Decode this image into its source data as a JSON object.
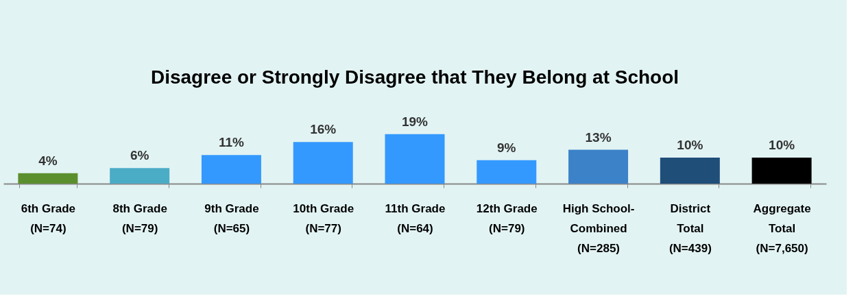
{
  "chart_data": {
    "type": "bar",
    "title": "Disagree or Strongly Disagree that They Belong at School",
    "categories": [
      "6th Grade\n(N=74)",
      "8th Grade\n(N=79)",
      "9th Grade\n(N=65)",
      "10th Grade\n(N=77)",
      "11th Grade\n(N=64)",
      "12th Grade\n(N=79)",
      "High School-\nCombined\n(N=285)",
      "District\nTotal\n(N=439)",
      "Aggregate\nTotal\n(N=7,650)"
    ],
    "values": [
      4,
      6,
      11,
      16,
      19,
      9,
      13,
      10,
      10
    ],
    "colors": [
      "#5b8f2e",
      "#4bacc6",
      "#3399ff",
      "#3399ff",
      "#3399ff",
      "#3399ff",
      "#3c82c8",
      "#1f4e79",
      "#000000"
    ],
    "value_labels": [
      "4%",
      "6%",
      "11%",
      "16%",
      "19%",
      "9%",
      "13%",
      "10%",
      "10%"
    ],
    "grid": false
  }
}
